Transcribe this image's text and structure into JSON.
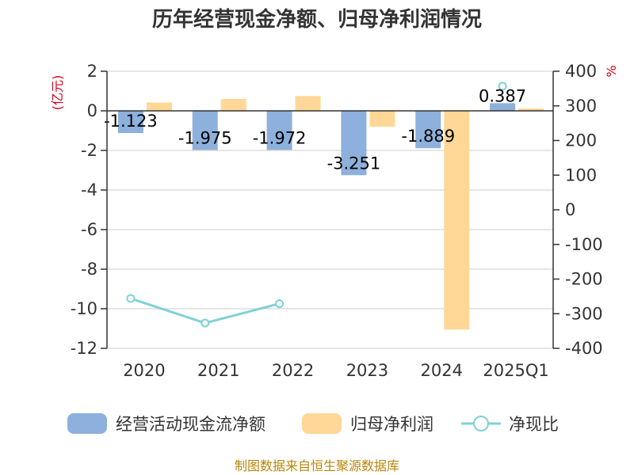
{
  "chart_data": {
    "type": "bar",
    "title": "历年经营现金净额、归母净利润情况",
    "categories": [
      "2020",
      "2021",
      "2022",
      "2023",
      "2024",
      "2025Q1"
    ],
    "left_unit": "(亿元)",
    "right_unit": "%",
    "left_ticks": [
      "2",
      "0",
      "-2",
      "-4",
      "-6",
      "-8",
      "-10",
      "-12"
    ],
    "right_ticks": [
      "400",
      "300",
      "200",
      "100",
      "0",
      "-100",
      "-200",
      "-300",
      "-400"
    ],
    "ylim_left": [
      -12,
      2
    ],
    "ylim_right": [
      -400,
      400
    ],
    "series": [
      {
        "name": "经营活动现金流净额",
        "axis": "left",
        "color": "#8eb0dc",
        "values": [
          -1.123,
          -1.975,
          -1.972,
          -3.251,
          -1.889,
          0.387
        ],
        "labels": [
          "-1.123",
          "-1.975",
          "-1.972",
          "-3.251",
          "-1.889",
          "0.387"
        ]
      },
      {
        "name": "归母净利润",
        "axis": "left",
        "color": "#ffd796",
        "values": [
          0.42,
          0.6,
          0.75,
          -0.8,
          -11.05,
          0.12
        ]
      },
      {
        "name": "净现比",
        "axis": "right",
        "color": "#7fd1d6",
        "values": [
          -256,
          -327,
          -271,
          null,
          null,
          357
        ]
      }
    ],
    "legend": [
      "经营活动现金流净额",
      "归母净利润",
      "净现比"
    ],
    "legend_position": "bottom"
  },
  "source": "制图数据来自恒生聚源数据库"
}
